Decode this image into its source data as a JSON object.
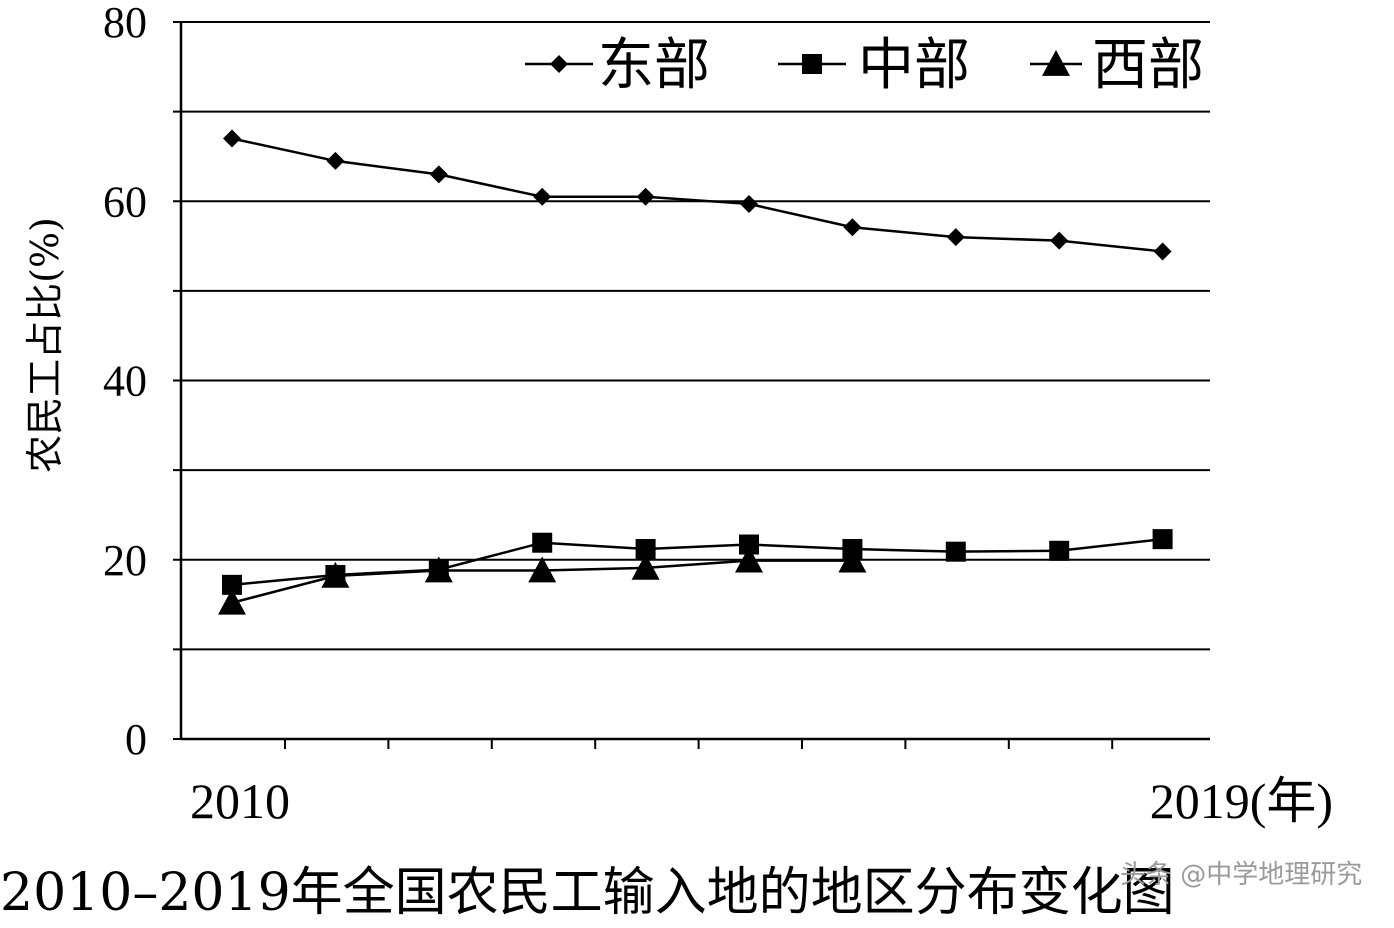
{
  "chart_data": {
    "type": "line",
    "title": "2010–2019年全国农民工输入地的地区分布变化图",
    "xlabel": "",
    "ylabel": "农民工占比(%)",
    "x_tick_labels": [
      {
        "value": 2010,
        "label": "2010"
      },
      {
        "value": 2019,
        "label": "2019(年)"
      }
    ],
    "y_ticks": [
      0,
      20,
      40,
      60,
      80
    ],
    "ylim": [
      0,
      80
    ],
    "grid": true,
    "legend_position": "top-right",
    "series": [
      {
        "name": "东部",
        "marker": "diamond",
        "x": [
          2010,
          2011,
          2012,
          2013,
          2014,
          2015,
          2016,
          2017,
          2018,
          2019
        ],
        "values": [
          67.0,
          64.5,
          63.0,
          60.5,
          60.5,
          59.7,
          57.1,
          56.0,
          55.6,
          54.4
        ]
      },
      {
        "name": "中部",
        "marker": "square",
        "x": [
          2010,
          2011,
          2012,
          2013,
          2014,
          2015,
          2016,
          2017,
          2018,
          2019
        ],
        "values": [
          17.2,
          18.3,
          18.9,
          21.9,
          21.2,
          21.7,
          21.2,
          20.9,
          21.0,
          22.3
        ]
      },
      {
        "name": "西部",
        "marker": "triangle",
        "x": [
          2010,
          2011,
          2012,
          2013,
          2014,
          2015,
          2016,
          2017,
          2018,
          2019
        ],
        "values": [
          15.2,
          18.2,
          18.8,
          18.8,
          19.1,
          19.9,
          19.9,
          null,
          null,
          null
        ]
      }
    ]
  },
  "watermark": "头条 @中学地理研究",
  "styles": {
    "axis_color": "#000000",
    "grid_color": "#000000",
    "line_color": "#000000",
    "background": "#ffffff"
  }
}
